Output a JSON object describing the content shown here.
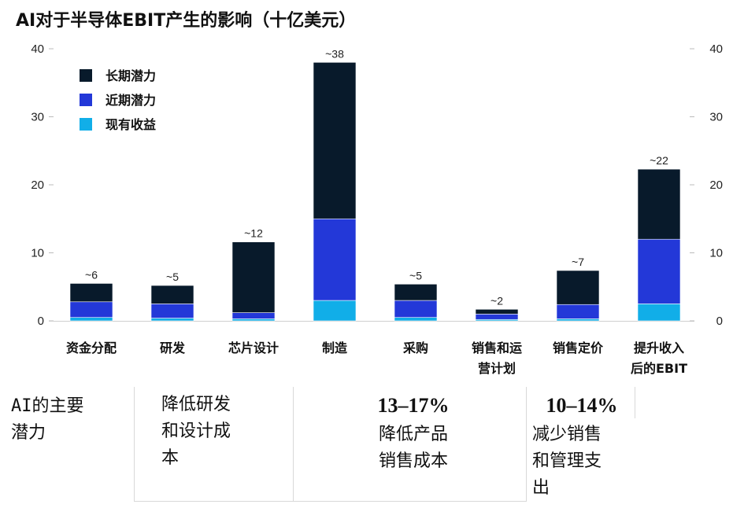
{
  "title": "AI对于半导体EBIT产生的影响（十亿美元）",
  "colors": {
    "long_term": "#081a2b",
    "near_term": "#2338d8",
    "existing": "#11aee8"
  },
  "chart_data": {
    "type": "bar",
    "stacked": true,
    "categories": [
      "资金分配",
      "研发",
      "芯片设计",
      "制造",
      "采购",
      "销售和运营计划",
      "销售定价",
      "提升收入后的EBIT"
    ],
    "category_lines": [
      [
        "资金分配"
      ],
      [
        "研发"
      ],
      [
        "芯片设计"
      ],
      [
        "制造"
      ],
      [
        "采购"
      ],
      [
        "销售和运",
        "营计划"
      ],
      [
        "销售定价"
      ],
      [
        "提升收入",
        "后的EBIT"
      ]
    ],
    "series": [
      {
        "name": "现有收益",
        "values": [
          0.5,
          0.4,
          0.3,
          3.0,
          0.5,
          0.2,
          0.3,
          2.5
        ]
      },
      {
        "name": "近期潜力",
        "values": [
          2.3,
          2.1,
          0.9,
          12.0,
          2.5,
          0.8,
          2.1,
          9.5
        ]
      },
      {
        "name": "长期潜力",
        "values": [
          2.7,
          2.7,
          10.4,
          23.0,
          2.4,
          0.7,
          5.0,
          10.3
        ]
      }
    ],
    "data_labels": [
      "~6",
      "~5",
      "~12",
      "~38",
      "~5",
      "~2",
      "~7",
      "~22"
    ],
    "yticks": [
      0,
      10,
      20,
      30,
      40
    ],
    "ylim": [
      0,
      40
    ],
    "legend": [
      "长期潜力",
      "近期潜力",
      "现有收益"
    ],
    "legend_position": "top-left",
    "grid": false
  },
  "panels": {
    "p1": {
      "text1": "AI的主要",
      "text2": "潜力"
    },
    "p2": {
      "text1": "降低研发",
      "text2": "和设计成",
      "text3": "本"
    },
    "p3": {
      "pct": "13–17%",
      "text1": "降低产品",
      "text2": "销售成本"
    },
    "p4": {
      "pct": "10–14%",
      "text1": "减少销售",
      "text2": "和管理支",
      "text3": "出"
    }
  }
}
